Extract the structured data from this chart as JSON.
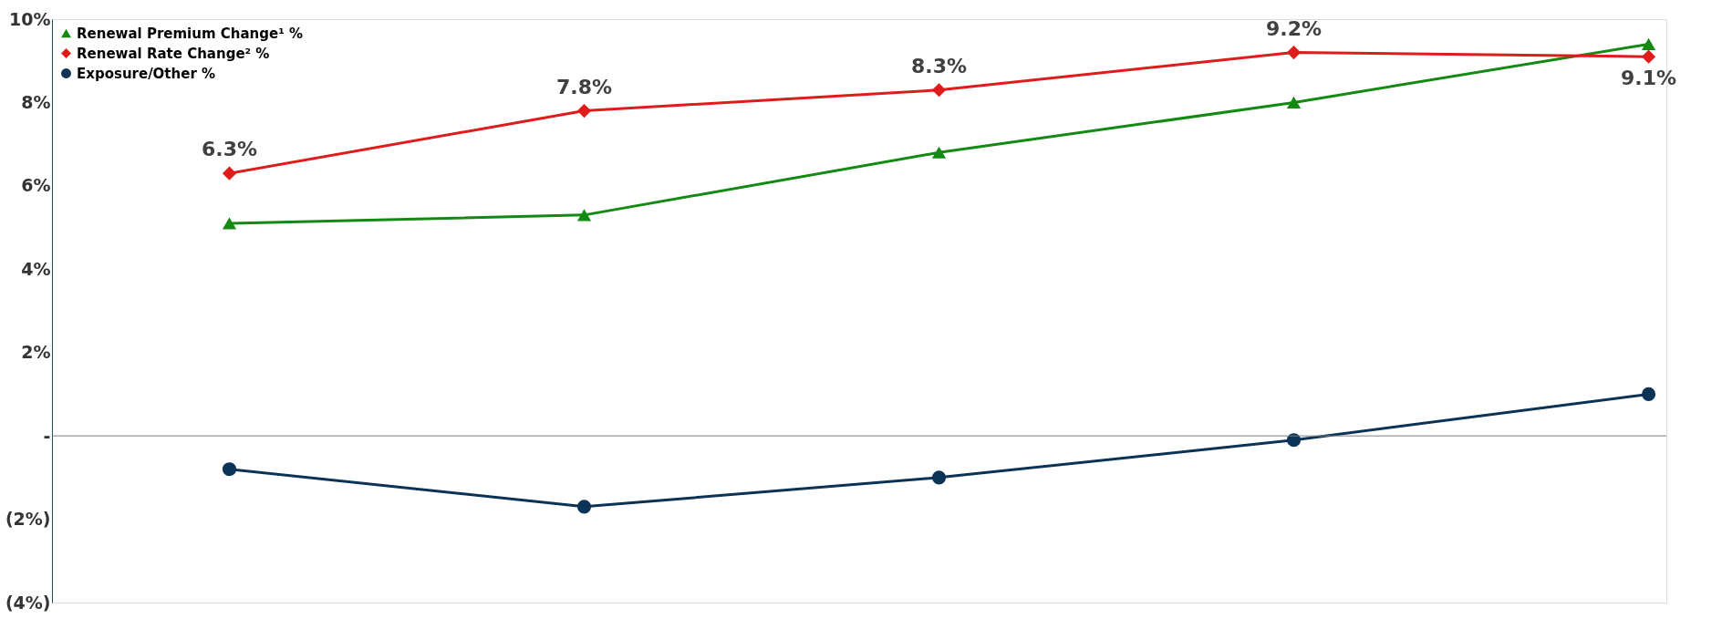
{
  "chart_data": {
    "type": "line",
    "categories": [
      null,
      null,
      null,
      null,
      null
    ],
    "series": [
      {
        "name": "Renewal Premium Change¹ %",
        "color": "#138a13",
        "marker": "triangle",
        "values": [
          5.1,
          5.3,
          6.8,
          8.0,
          9.4
        ]
      },
      {
        "name": "Renewal Rate Change² %",
        "color": "#e01b1b",
        "marker": "diamond",
        "values": [
          6.3,
          7.8,
          8.3,
          9.2,
          9.1
        ],
        "value_labels": [
          "6.3%",
          "7.8%",
          "8.3%",
          "9.2%",
          "9.1%"
        ]
      },
      {
        "name": "Exposure/Other %",
        "color": "#0b3356",
        "marker": "circle",
        "values": [
          -0.8,
          -1.7,
          -1.0,
          -0.1,
          1.0
        ]
      }
    ],
    "ylim": [
      -4,
      10
    ],
    "yticks": [
      {
        "value": -4,
        "label": "(4%)"
      },
      {
        "value": -2,
        "label": "(2%)"
      },
      {
        "value": 0,
        "label": "-"
      },
      {
        "value": 2,
        "label": "2%"
      },
      {
        "value": 4,
        "label": "4%"
      },
      {
        "value": 6,
        "label": "6%"
      },
      {
        "value": 8,
        "label": "8%"
      },
      {
        "value": 10,
        "label": "10%"
      }
    ],
    "ref_lines": [
      {
        "axis": "y",
        "value": 0,
        "color": "#7f7f7f"
      }
    ],
    "grid": false,
    "legend": "top left",
    "line_style": "solid"
  }
}
